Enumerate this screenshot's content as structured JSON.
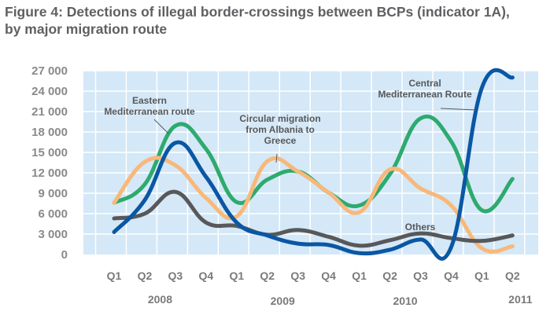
{
  "title_line1": "Figure 4: Detections of illegal border-crossings between BCPs (indicator 1A),",
  "title_line2": "by major migration route",
  "chart_data": {
    "type": "line",
    "title": "Figure 4: Detections of illegal border-crossings between BCPs (indicator 1A), by major migration route",
    "xlabel": "",
    "ylabel": "",
    "ylim": [
      0,
      27000
    ],
    "yticks": [
      0,
      3000,
      6000,
      9000,
      12000,
      15000,
      18000,
      21000,
      24000,
      27000
    ],
    "ytick_labels": [
      "0",
      "3 000",
      "6 000",
      "9 000",
      "12 000",
      "15 000",
      "18 000",
      "21 000",
      "24 000",
      "27 000"
    ],
    "grid": true,
    "categories": [
      "Q1",
      "Q2",
      "Q3",
      "Q4",
      "Q1",
      "Q2",
      "Q3",
      "Q4",
      "Q1",
      "Q2",
      "Q3",
      "Q4",
      "Q1",
      "Q2"
    ],
    "years": [
      {
        "label": "2008",
        "start": 0,
        "end": 3
      },
      {
        "label": "2009",
        "start": 4,
        "end": 7
      },
      {
        "label": "2010",
        "start": 8,
        "end": 11
      },
      {
        "label": "2011",
        "start": 12,
        "end": 13
      }
    ],
    "series": [
      {
        "name": "Eastern Mediterranean route",
        "color": "#2eaa6e",
        "values": [
          7600,
          10300,
          18900,
          15500,
          7700,
          11000,
          12200,
          9100,
          7200,
          11800,
          20000,
          16600,
          6500,
          11100
        ]
      },
      {
        "name": "Circular migration from Albania to Greece",
        "color": "#f8b87a",
        "values": [
          7600,
          13600,
          13100,
          8300,
          5600,
          13700,
          12200,
          9100,
          6200,
          12500,
          9700,
          7200,
          900,
          1200
        ]
      },
      {
        "name": "Others",
        "color": "#58585a",
        "values": [
          5300,
          6000,
          9200,
          4700,
          4200,
          2900,
          3600,
          2600,
          1300,
          2100,
          3100,
          2400,
          2000,
          2800
        ]
      },
      {
        "name": "Central Mediterranean Route",
        "color": "#0a57a4",
        "values": [
          3300,
          8000,
          16400,
          11400,
          4700,
          2800,
          1600,
          1400,
          200,
          700,
          2200,
          1100,
          24500,
          26000
        ]
      }
    ],
    "annotations": [
      {
        "series": "Eastern Mediterranean route",
        "lines": [
          "Eastern",
          "Mediterranean route"
        ]
      },
      {
        "series": "Circular migration from Albania to Greece",
        "lines": [
          "Circular migration",
          "from Albania to",
          "Greece"
        ]
      },
      {
        "series": "Central Mediterranean Route",
        "lines": [
          "Central",
          "Mediterranean Route"
        ]
      },
      {
        "series": "Others",
        "lines": [
          "Others"
        ]
      }
    ],
    "plot_background": "#d4e8f7",
    "gridline_color": "#ffffff",
    "legend": "none (inline annotations)"
  }
}
